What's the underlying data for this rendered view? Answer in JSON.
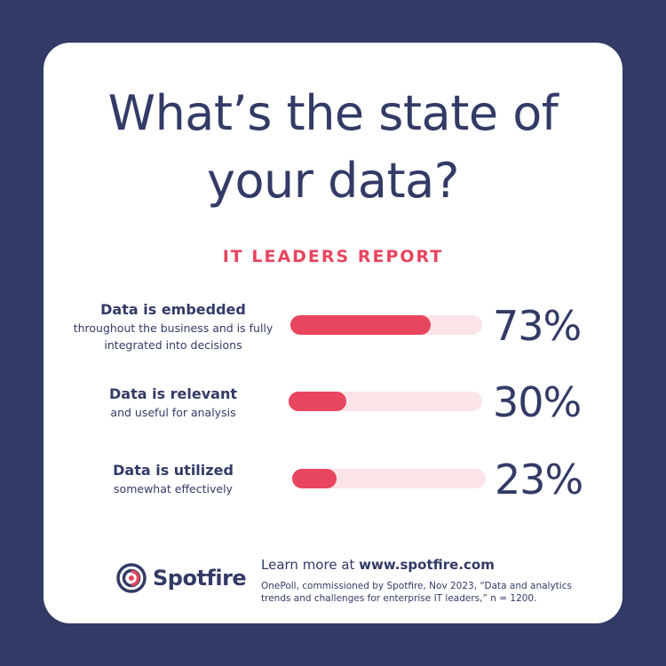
{
  "header": {
    "title_line1": "What’s the state of",
    "title_line2": "your data?",
    "subtitle": "IT LEADERS REPORT"
  },
  "chart_data": {
    "type": "bar",
    "title": "What’s the state of your data?",
    "subtitle": "IT LEADERS REPORT",
    "xlabel": "",
    "ylabel": "",
    "ylim": [
      0,
      100
    ],
    "categories": [
      "Data is embedded",
      "Data is relevant",
      "Data is utilized"
    ],
    "descriptions": [
      "throughout the business and is fully integrated into decisions",
      "and useful for analysis",
      "somewhat effectively"
    ],
    "values": [
      73,
      30,
      23
    ],
    "value_labels": [
      "73%",
      "30%",
      "23%"
    ],
    "grid": false,
    "colors": {
      "fill": "#e8455f",
      "track": "#fbe4e8"
    }
  },
  "footer": {
    "logo_text": "Spotfire",
    "learn_prefix": "Learn more at ",
    "learn_url": "www.spotfire.com",
    "source": "OnePoll, commissioned by Spotfire, Nov 2023, “Data and analytics trends and challenges for enterprise IT leaders,” n = 1200."
  },
  "colors": {
    "background": "#323b66",
    "card": "#ffffff",
    "accent": "#e8455f",
    "text": "#323b66"
  }
}
